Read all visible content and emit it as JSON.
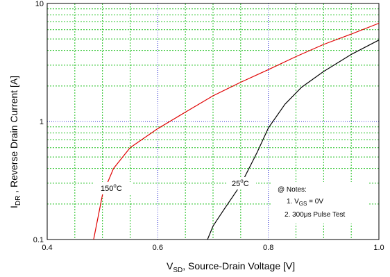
{
  "chart_data": {
    "type": "line",
    "title": "",
    "xlabel": {
      "main": "V",
      "sub": "SD",
      "rest": ", Source-Drain Voltage [V]"
    },
    "ylabel": {
      "main": "I",
      "sub": "DR",
      "rest": " , Reverse Drain Current [A]"
    },
    "xlim": [
      0.4,
      1.0
    ],
    "ylim": [
      0.1,
      10
    ],
    "yscale": "log",
    "grid": true,
    "xticks": [
      0.4,
      0.6,
      0.8,
      1.0
    ],
    "xtick_labels": [
      "0.4",
      "0.6",
      "0.8",
      "1.0"
    ],
    "yticks": [
      0.1,
      1,
      10
    ],
    "ytick_labels": [
      "0.1",
      "1",
      "10"
    ],
    "series": [
      {
        "name": "150°C",
        "color": "#e00000",
        "x": [
          0.484,
          0.5,
          0.52,
          0.55,
          0.6,
          0.65,
          0.7,
          0.75,
          0.8,
          0.85,
          0.9,
          0.95,
          1.0
        ],
        "y": [
          0.1,
          0.24,
          0.4,
          0.6,
          0.87,
          1.2,
          1.65,
          2.15,
          2.75,
          3.55,
          4.5,
          5.5,
          6.8
        ]
      },
      {
        "name": "25°C",
        "color": "#000000",
        "x": [
          0.69,
          0.7,
          0.72,
          0.75,
          0.78,
          0.8,
          0.83,
          0.86,
          0.9,
          0.95,
          1.0
        ],
        "y": [
          0.1,
          0.13,
          0.18,
          0.29,
          0.55,
          0.88,
          1.4,
          1.95,
          2.65,
          3.7,
          4.9
        ]
      }
    ],
    "annotations": {
      "label_150": {
        "value": "150",
        "sup": "o",
        "unit": "C"
      },
      "label_25": {
        "value": "25",
        "sup": "o",
        "unit": "C"
      },
      "notes_title": "@ Notes:",
      "note1": {
        "prefix": "1. V",
        "sub": "GS",
        "suffix": " = 0V"
      },
      "note2": "2. 300μs Pulse Test"
    }
  }
}
